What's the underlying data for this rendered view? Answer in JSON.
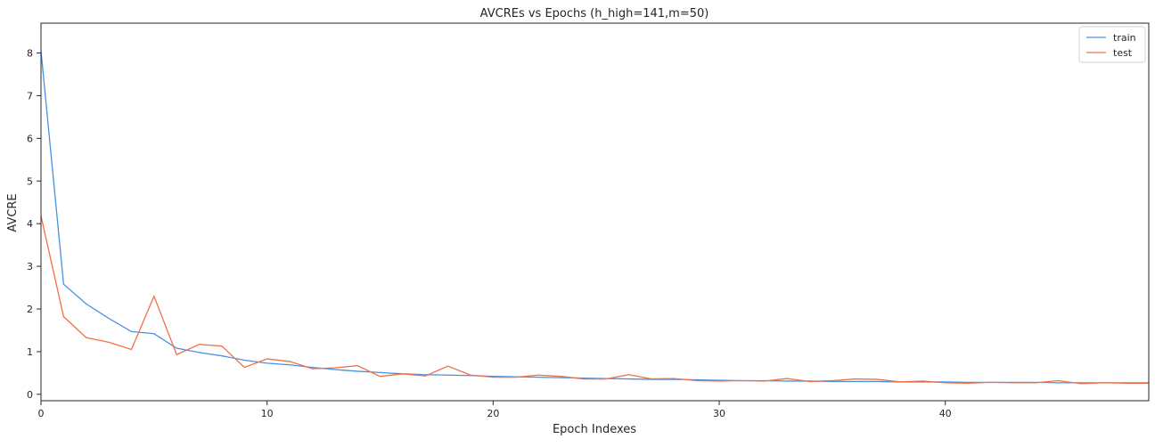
{
  "chart_data": {
    "type": "line",
    "title": "AVCREs vs Epochs (h_high=141,m=50)",
    "xlabel": "Epoch Indexes",
    "ylabel": "AVCRE",
    "xlim": [
      0,
      49
    ],
    "ylim": [
      -0.15,
      8.7
    ],
    "xticks": [
      0,
      10,
      20,
      30,
      40
    ],
    "yticks": [
      0,
      1,
      2,
      3,
      4,
      5,
      6,
      7,
      8
    ],
    "grid": false,
    "legend_position": "top-right",
    "x": [
      0,
      1,
      2,
      3,
      4,
      5,
      6,
      7,
      8,
      9,
      10,
      11,
      12,
      13,
      14,
      15,
      16,
      17,
      18,
      19,
      20,
      21,
      22,
      23,
      24,
      25,
      26,
      27,
      28,
      29,
      30,
      31,
      32,
      33,
      34,
      35,
      36,
      37,
      38,
      39,
      40,
      41,
      42,
      43,
      44,
      45,
      46,
      47,
      48,
      49
    ],
    "series": [
      {
        "name": "train",
        "color": "#4a90e2",
        "values": [
          8.05,
          2.58,
          2.12,
          1.78,
          1.47,
          1.42,
          1.08,
          0.98,
          0.9,
          0.8,
          0.73,
          0.69,
          0.63,
          0.58,
          0.54,
          0.51,
          0.48,
          0.46,
          0.45,
          0.44,
          0.42,
          0.41,
          0.4,
          0.39,
          0.38,
          0.37,
          0.36,
          0.35,
          0.35,
          0.34,
          0.33,
          0.32,
          0.32,
          0.31,
          0.31,
          0.3,
          0.3,
          0.3,
          0.29,
          0.29,
          0.29,
          0.28,
          0.28,
          0.28,
          0.28,
          0.27,
          0.27,
          0.27,
          0.27,
          0.27
        ]
      },
      {
        "name": "test",
        "color": "#f07048",
        "values": [
          4.18,
          1.82,
          1.33,
          1.22,
          1.05,
          2.3,
          0.93,
          1.17,
          1.13,
          0.63,
          0.83,
          0.77,
          0.6,
          0.62,
          0.67,
          0.42,
          0.48,
          0.43,
          0.66,
          0.45,
          0.4,
          0.4,
          0.45,
          0.42,
          0.36,
          0.36,
          0.46,
          0.36,
          0.37,
          0.32,
          0.31,
          0.32,
          0.31,
          0.37,
          0.3,
          0.32,
          0.36,
          0.35,
          0.29,
          0.31,
          0.27,
          0.26,
          0.28,
          0.27,
          0.27,
          0.32,
          0.25,
          0.27,
          0.26,
          0.26
        ]
      }
    ]
  }
}
